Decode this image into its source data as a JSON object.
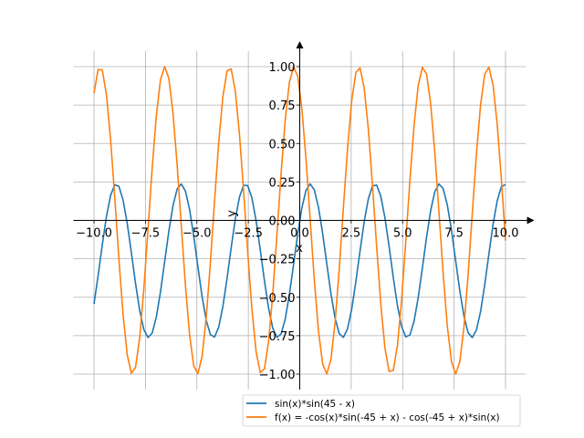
{
  "chart_data": {
    "type": "line",
    "title": "",
    "xlabel": "x",
    "ylabel": "y",
    "xlim": [
      -11,
      11
    ],
    "ylim": [
      -1.1,
      1.1
    ],
    "grid": true,
    "legend_position": "bottom-right",
    "x_domain": [
      -10,
      10
    ],
    "x_ticks": [
      "−10.0",
      "−7.5",
      "−5.0",
      "−2.5",
      "0.0",
      "2.5",
      "5.0",
      "7.5",
      "10.0"
    ],
    "x_tick_values": [
      -10,
      -7.5,
      -5,
      -2.5,
      0,
      2.5,
      5,
      7.5,
      10
    ],
    "y_ticks": [
      "−1.00",
      "−0.75",
      "−0.50",
      "−0.25",
      "0.00",
      "0.25",
      "0.50",
      "0.75",
      "1.00"
    ],
    "y_tick_values": [
      -1,
      -0.75,
      -0.5,
      -0.25,
      0,
      0.25,
      0.5,
      0.75,
      1
    ],
    "series": [
      {
        "name": "sin(x)*sin(45 - x)",
        "color": "#1f77b4"
      },
      {
        "name": "f(x) = -cos(x)*sin(-45 + x) - cos(-45 + x)*sin(x)",
        "color": "#ff7f0e"
      }
    ]
  }
}
